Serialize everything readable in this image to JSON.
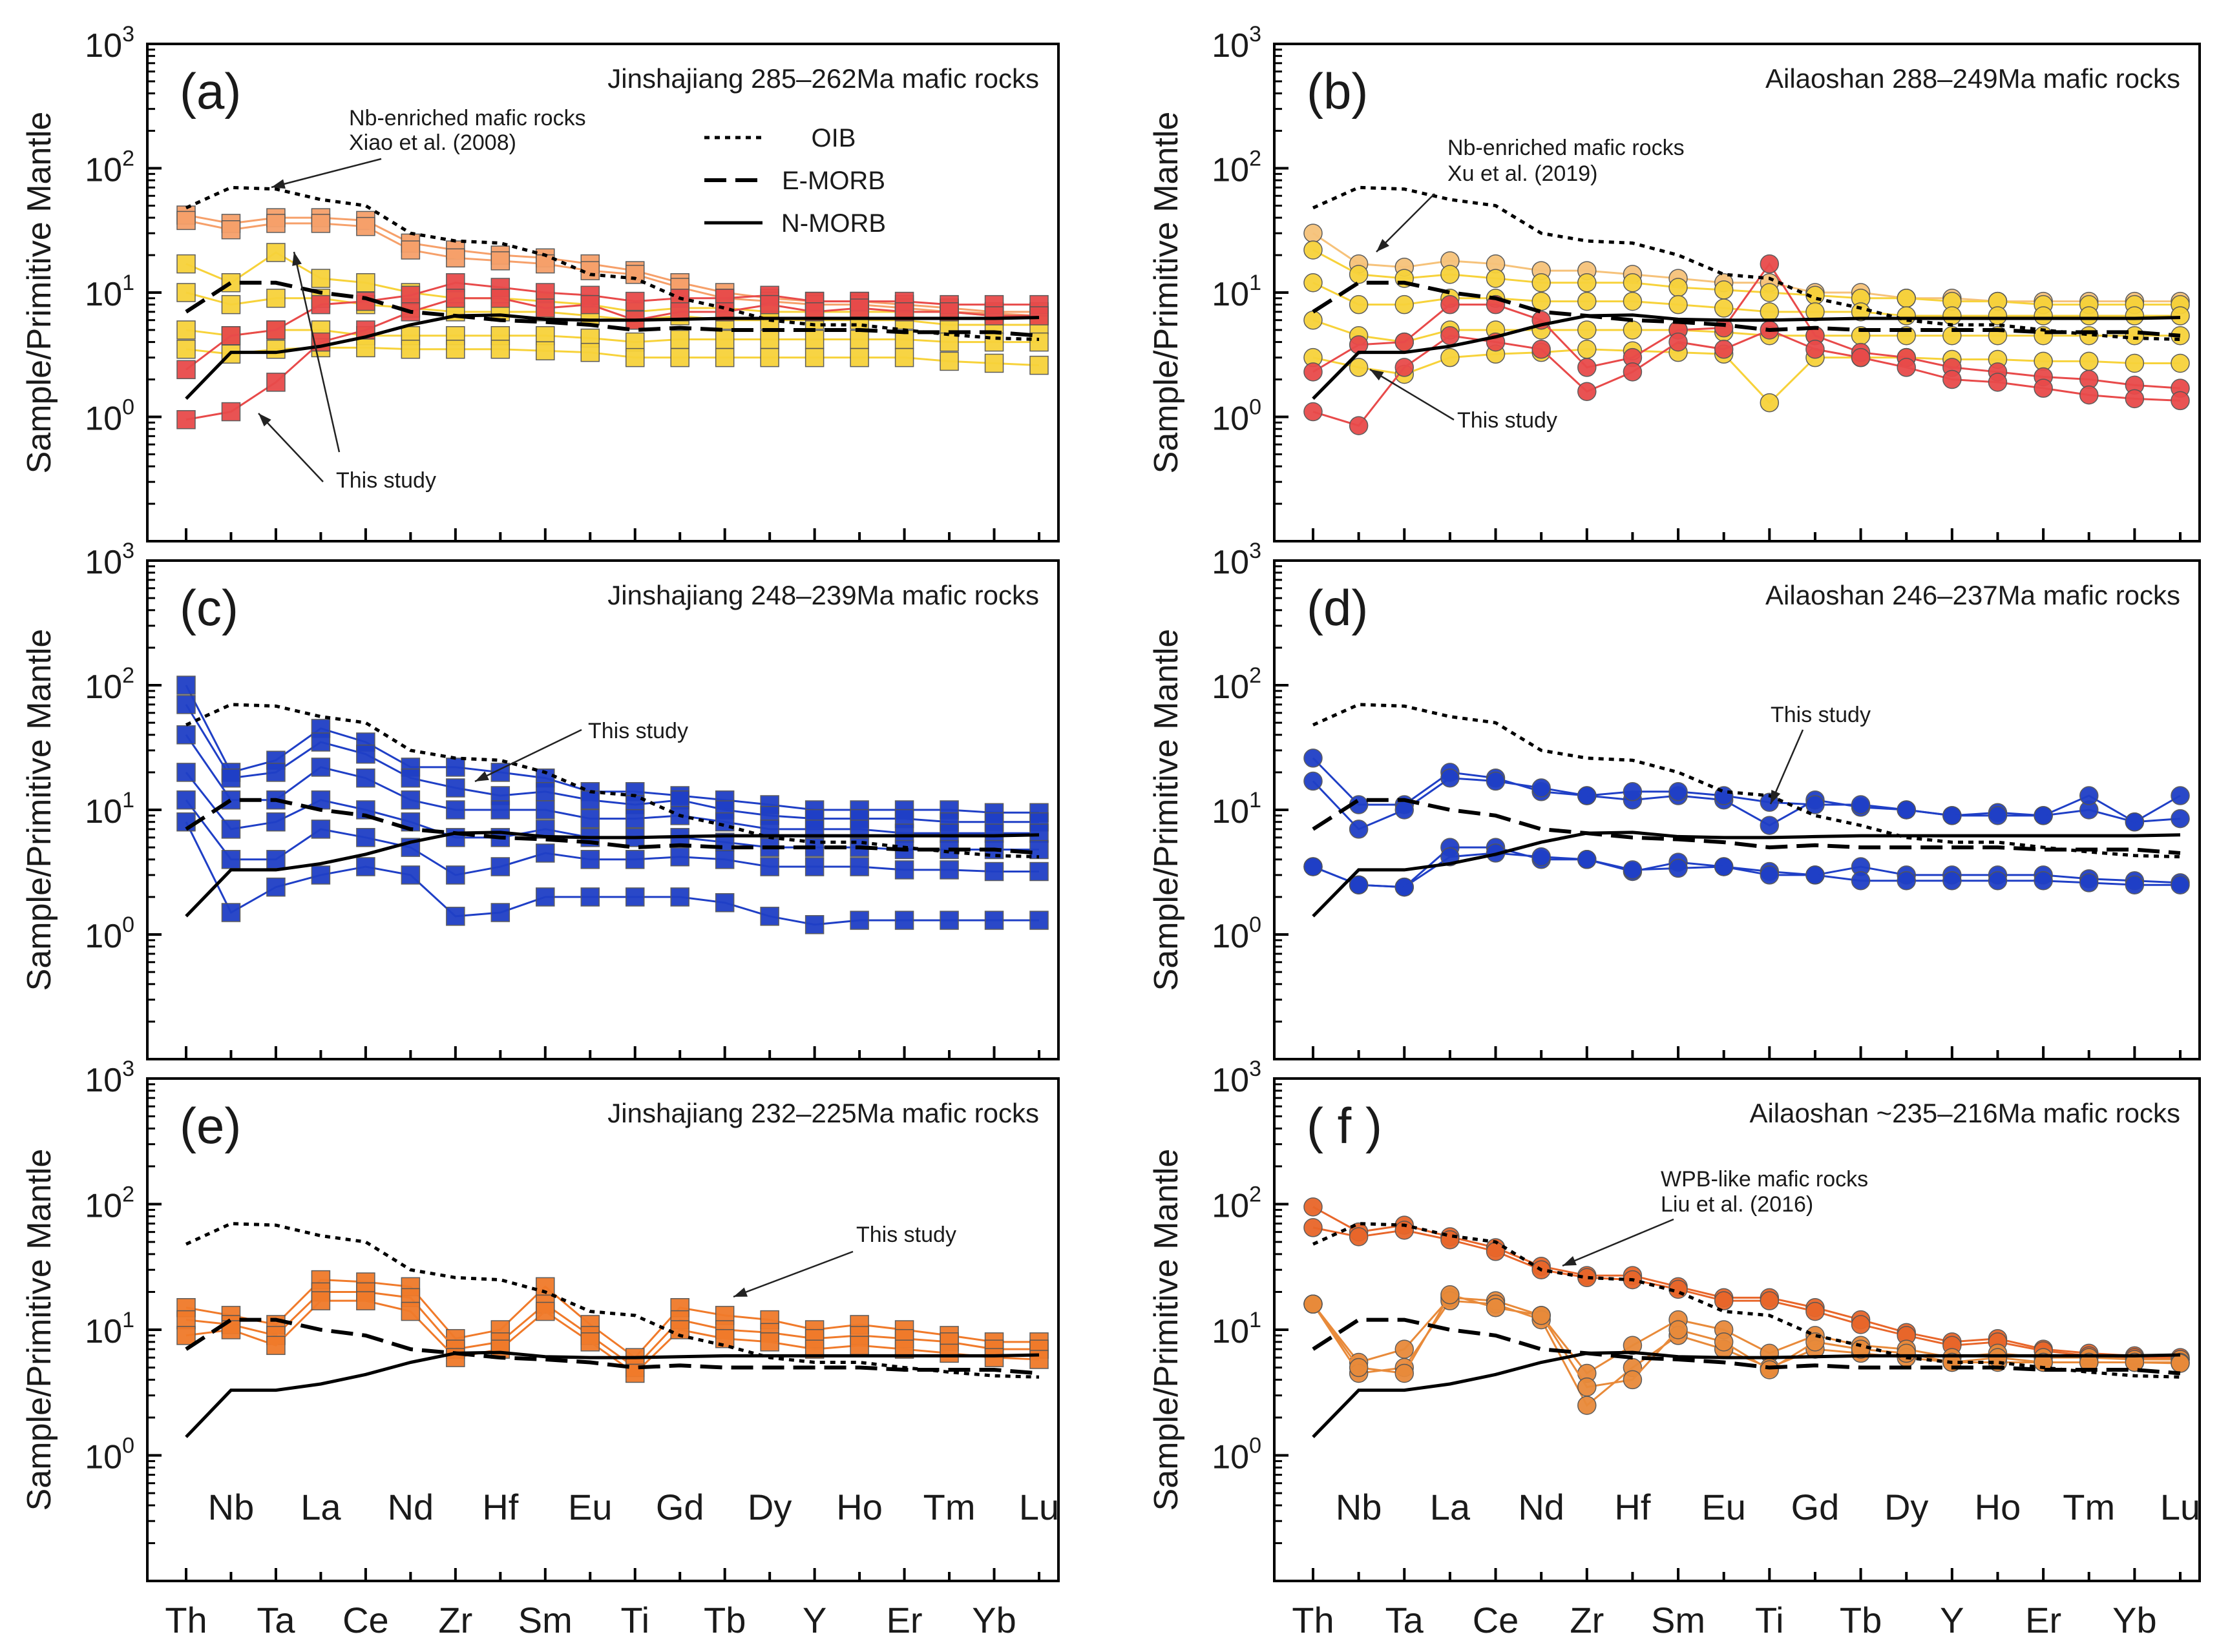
{
  "chart_data": {
    "type": "line",
    "y_axis_label": "Sample/Primitive Mantle",
    "y_scale": "log",
    "ylim": [
      0.1,
      1000
    ],
    "y_ticks": [
      {
        "base": "10",
        "exp": "0"
      },
      {
        "base": "10",
        "exp": "1"
      },
      {
        "base": "10",
        "exp": "2"
      },
      {
        "base": "10",
        "exp": "3"
      }
    ],
    "x_elements": [
      "Th",
      "Nb",
      "Ta",
      "La",
      "Ce",
      "Nd",
      "Zr",
      "Hf",
      "Sm",
      "Eu",
      "Ti",
      "Gd",
      "Tb",
      "Dy",
      "Y",
      "Ho",
      "Er",
      "Tm",
      "Yb",
      "Lu"
    ],
    "legend": [
      "OIB",
      "E-MORB",
      "N-MORB"
    ],
    "reference_curves": {
      "OIB": [
        48,
        70,
        68,
        56,
        50,
        30,
        26,
        25,
        20,
        14,
        13,
        9,
        7.5,
        6,
        5.5,
        5.5,
        5,
        4.6,
        4.3,
        4.2
      ],
      "E-MORB": [
        7,
        12,
        12,
        10,
        9,
        7,
        6.5,
        6,
        5.8,
        5.5,
        5,
        5.2,
        5,
        5,
        5,
        5,
        4.8,
        4.8,
        4.8,
        4.5
      ],
      "N-MORB": [
        1.4,
        3.3,
        3.3,
        3.7,
        4.4,
        5.5,
        6.5,
        6.6,
        6.1,
        6.0,
        6.0,
        6.1,
        6.2,
        6.2,
        6.2,
        6.2,
        6.2,
        6.2,
        6.2,
        6.3
      ]
    },
    "panels": [
      {
        "label": "(a)",
        "title": "Jinshajiang 285–262Ma mafic rocks",
        "marker": "square",
        "annotations": [
          "Nb-enriched mafic rocks",
          "Xiao et al. (2008)",
          "This study"
        ],
        "series": [
          {
            "name": "Nb-enriched mafic rocks (Xiao et al. 2008)",
            "color": "#f6a06a",
            "values": [
              42,
              36,
              40,
              40,
              38,
              25,
              22,
              20,
              19,
              17,
              15,
              12,
              10,
              9,
              8.5,
              8.5,
              8,
              7.5,
              7,
              7
            ]
          },
          {
            "name": "Nb-enriched mafic rocks (Xiao et al. 2008)",
            "color": "#f6a06a",
            "values": [
              38,
              32,
              36,
              36,
              34,
              22,
              19,
              18,
              17,
              15,
              14,
              11,
              9,
              8.5,
              8,
              8,
              7.5,
              7,
              6.8,
              6.5
            ]
          },
          {
            "name": "Xiao et al. (2008) mafic rocks",
            "color": "#f7d23a",
            "values": [
              17,
              12,
              21,
              13,
              12,
              10,
              9,
              9,
              8.5,
              8,
              7,
              7.5,
              7.5,
              7,
              7,
              7,
              7,
              7,
              6.5,
              6.5
            ]
          },
          {
            "name": "Xiao et al. (2008) mafic rocks",
            "color": "#f7d23a",
            "values": [
              10,
              8,
              9,
              9,
              8,
              7.5,
              7,
              7,
              7,
              6.5,
              6,
              6.5,
              6,
              6,
              6,
              6,
              6,
              5.5,
              5.5,
              5.5
            ]
          },
          {
            "name": "Xiao et al. (2008) mafic rocks",
            "color": "#f7d23a",
            "values": [
              5,
              4.5,
              5,
              5,
              4.5,
              4.5,
              4.5,
              4.5,
              4.5,
              4.3,
              4,
              4.2,
              4.2,
              4.2,
              4.2,
              4.2,
              4.2,
              4,
              4,
              4
            ]
          },
          {
            "name": "Xiao et al. (2008) mafic rocks",
            "color": "#f7d23a",
            "values": [
              3.5,
              3.2,
              3.5,
              3.6,
              3.6,
              3.5,
              3.5,
              3.5,
              3.4,
              3.3,
              3,
              3,
              3,
              3,
              3,
              3,
              3,
              2.8,
              2.7,
              2.6
            ]
          },
          {
            "name": "This study",
            "color": "#e84a4a",
            "values": [
              2.4,
              4.5,
              5,
              8,
              8.5,
              9.5,
              12,
              11,
              10,
              9.5,
              8.5,
              9,
              9,
              9.5,
              8.5,
              8.5,
              8.5,
              8,
              8,
              8
            ]
          },
          {
            "name": "This study",
            "color": "#e84a4a",
            "values": [
              0.95,
              1.1,
              1.9,
              4,
              5,
              7,
              9,
              9,
              7.5,
              8,
              6,
              7,
              7,
              8,
              7,
              7.5,
              7,
              7,
              6.5,
              6.5
            ]
          }
        ]
      },
      {
        "label": "(b)",
        "title": "Ailaoshan 288–249Ma mafic rocks",
        "marker": "circle",
        "annotations": [
          "Nb-enriched mafic rocks",
          "Xu et al. (2019)",
          "This study"
        ],
        "series": [
          {
            "name": "Nb-enriched mafic rocks (Xu et al. 2019)",
            "color": "#f6c27a",
            "values": [
              30,
              17,
              16,
              18,
              17,
              15,
              15,
              14,
              13,
              12,
              12,
              10,
              10,
              9,
              9,
              8.5,
              8.5,
              8.5,
              8.5,
              8.5
            ]
          },
          {
            "name": "Xu et al. (2019) mafic rocks",
            "color": "#f7d23a",
            "values": [
              22,
              14,
              13,
              14,
              13,
              12,
              12,
              12,
              11,
              10.5,
              10,
              9.5,
              9,
              9,
              8.5,
              8.5,
              8,
              8,
              8,
              8
            ]
          },
          {
            "name": "Xu et al. (2019) mafic rocks",
            "color": "#f7d23a",
            "values": [
              12,
              8,
              8,
              9,
              9,
              8.5,
              8.5,
              8.5,
              8,
              7.5,
              7,
              7,
              7,
              6.5,
              6.5,
              6.5,
              6.5,
              6.5,
              6.5,
              6.5
            ]
          },
          {
            "name": "Xu et al. (2019) mafic rocks",
            "color": "#f7d23a",
            "values": [
              6,
              4.5,
              4,
              5,
              5,
              5,
              5,
              5,
              5,
              4.8,
              4.5,
              4.5,
              4.5,
              4.5,
              4.5,
              4.5,
              4.5,
              4.5,
              4.5,
              4.5
            ]
          },
          {
            "name": "Xu et al. (2019) mafic rocks",
            "color": "#f7d23a",
            "values": [
              3,
              2.5,
              2.2,
              3,
              3.2,
              3.3,
              3.5,
              3.4,
              3.3,
              3.2,
              1.3,
              3,
              3,
              3,
              2.9,
              2.9,
              2.8,
              2.8,
              2.7,
              2.7
            ]
          },
          {
            "name": "This study",
            "color": "#e84a4a",
            "values": [
              2.3,
              3.8,
              4,
              8,
              8,
              6,
              2.5,
              3,
              5,
              5.2,
              17,
              4.5,
              3.3,
              3,
              2.5,
              2.3,
              2.1,
              2,
              1.8,
              1.7
            ]
          },
          {
            "name": "This study",
            "color": "#e84a4a",
            "values": [
              1.1,
              0.85,
              2.5,
              4.5,
              4,
              3.5,
              1.6,
              2.3,
              4,
              3.5,
              5,
              3.5,
              3,
              2.5,
              2,
              1.9,
              1.7,
              1.5,
              1.4,
              1.35
            ]
          }
        ]
      },
      {
        "label": "(c)",
        "title": "Jinshajiang 248–239Ma mafic rocks",
        "marker": "square",
        "annotations": [
          "This study"
        ],
        "series": [
          {
            "name": "This study",
            "color": "#1f3fc6",
            "values": [
              100,
              20,
              25,
              45,
              35,
              22,
              22,
              20,
              18,
              14,
              14,
              13,
              12,
              11,
              10,
              10,
              10,
              10,
              9.5,
              9.5
            ]
          },
          {
            "name": "This study",
            "color": "#1f3fc6",
            "values": [
              70,
              18,
              20,
              35,
              28,
              18,
              15,
              13,
              14,
              12,
              11,
              12,
              10,
              9,
              8.5,
              8.5,
              8.5,
              8,
              8,
              8
            ]
          },
          {
            "name": "This study",
            "color": "#1f3fc6",
            "values": [
              40,
              12,
              12,
              22,
              18,
              12,
              10,
              10,
              10,
              8.5,
              8.5,
              9,
              8,
              7,
              7,
              7,
              6.5,
              6.5,
              6.5,
              6.5
            ]
          },
          {
            "name": "This study",
            "color": "#1f3fc6",
            "values": [
              20,
              7,
              8,
              12,
              10,
              8,
              6,
              6,
              7,
              6,
              6,
              6,
              5.5,
              5,
              5,
              5,
              4.8,
              4.8,
              4.8,
              4.8
            ]
          },
          {
            "name": "This study",
            "color": "#1f3fc6",
            "values": [
              12,
              4,
              4,
              7,
              6,
              5,
              3,
              3.5,
              4.5,
              4,
              4,
              4.2,
              4,
              3.5,
              3.5,
              3.5,
              3.3,
              3.3,
              3.2,
              3.2
            ]
          },
          {
            "name": "This study",
            "color": "#1f3fc6",
            "values": [
              8,
              1.5,
              2.4,
              3,
              3.5,
              3,
              1.4,
              1.5,
              2,
              2,
              2,
              2,
              1.8,
              1.4,
              1.2,
              1.3,
              1.3,
              1.3,
              1.3,
              1.3
            ]
          }
        ]
      },
      {
        "label": "(d)",
        "title": "Ailaoshan 246–237Ma mafic rocks",
        "marker": "circle",
        "annotations": [
          "This study"
        ],
        "series": [
          {
            "name": "This study",
            "color": "#1f3fc6",
            "values": [
              26,
              11,
              11,
              20,
              18,
              14,
              13,
              12,
              13,
              12,
              7.5,
              12,
              10.5,
              10,
              9,
              9.5,
              9,
              10,
              8,
              8.5
            ]
          },
          {
            "name": "This study",
            "color": "#1f3fc6",
            "values": [
              17,
              7,
              10,
              18,
              17,
              15,
              13,
              14,
              14,
              13,
              11.5,
              11,
              11,
              10,
              9,
              9,
              9,
              13,
              8,
              13
            ]
          },
          {
            "name": "This study",
            "color": "#1f3fc6",
            "values": [
              3.5,
              2.5,
              2.4,
              5,
              5,
              4,
              4,
              3.2,
              3.8,
              3.5,
              3.2,
              3,
              3.5,
              3,
              3,
              3,
              3,
              2.8,
              2.7,
              2.6
            ]
          },
          {
            "name": "This study",
            "color": "#1f3fc6",
            "values": [
              3.5,
              2.5,
              2.4,
              4.2,
              4.5,
              4.2,
              4,
              3.3,
              3.4,
              3.5,
              3,
              3,
              2.7,
              2.7,
              2.7,
              2.7,
              2.7,
              2.6,
              2.5,
              2.5
            ]
          }
        ]
      },
      {
        "label": "(e)",
        "title": "Jinshajiang 232–225Ma mafic rocks",
        "marker": "square",
        "annotations": [
          "This study"
        ],
        "series": [
          {
            "name": "This study",
            "color": "#f07a2a",
            "values": [
              15,
              13,
              11,
              25,
              24,
              22,
              8.5,
              10,
              22,
              11,
              6,
              15,
              13,
              12,
              10,
              11,
              10,
              9,
              8,
              8
            ]
          },
          {
            "name": "This study",
            "color": "#f07a2a",
            "values": [
              12,
              11,
              9,
              20,
              20,
              18,
              7,
              8,
              16,
              9,
              5,
              12,
              10,
              9.5,
              8.5,
              9,
              8.5,
              8,
              7,
              7
            ]
          },
          {
            "name": "This study",
            "color": "#f07a2a",
            "values": [
              9,
              10,
              7.5,
              17,
              17,
              14,
              6,
              7,
              14,
              8,
              4.5,
              10,
              8.5,
              8,
              7,
              7.5,
              7,
              6.5,
              6,
              5.8
            ]
          }
        ]
      },
      {
        "label": "( f )",
        "title": "Ailaoshan ~235–216Ma mafic rocks",
        "marker": "circle",
        "annotations": [
          "WPB-like mafic rocks",
          "Liu et al. (2016)"
        ],
        "series": [
          {
            "name": "WPB-like mafic rocks (Liu et al. 2016)",
            "color": "#e8662a",
            "values": [
              95,
              60,
              68,
              55,
              45,
              32,
              27,
              27,
              22,
              18,
              18,
              15,
              12,
              9.5,
              8,
              8.5,
              7,
              6.5,
              6.2,
              6
            ]
          },
          {
            "name": "WPB-like mafic rocks (Liu et al. 2016)",
            "color": "#e8662a",
            "values": [
              65,
              55,
              62,
              52,
              42,
              30,
              26,
              25,
              21,
              17,
              17,
              14,
              11,
              9,
              7.5,
              8,
              6.8,
              6.2,
              6,
              5.8
            ]
          },
          {
            "name": "Liu et al. (2016) mafic rocks",
            "color": "#e88a3a",
            "values": [
              16,
              5.5,
              7,
              18,
              17,
              13,
              4.5,
              7.5,
              12,
              10,
              6.5,
              9,
              7.5,
              7,
              6,
              6.5,
              6,
              6,
              5.8,
              5.8
            ]
          },
          {
            "name": "Liu et al. (2016) mafic rocks",
            "color": "#e88a3a",
            "values": [
              16,
              4.5,
              5,
              17,
              16,
              12,
              2.5,
              5,
              9,
              7,
              5,
              7,
              6.5,
              6,
              5.5,
              5.5,
              5.5,
              5.5,
              5.5,
              5.5
            ]
          },
          {
            "name": "Liu et al. (2016) mafic rocks",
            "color": "#e88a3a",
            "values": [
              16,
              5,
              4.5,
              19,
              15,
              13,
              3.5,
              4,
              10,
              8,
              4.8,
              8,
              7,
              6.5,
              5.5,
              6,
              5.5,
              5.5,
              5.5,
              5.4
            ]
          }
        ]
      }
    ]
  }
}
